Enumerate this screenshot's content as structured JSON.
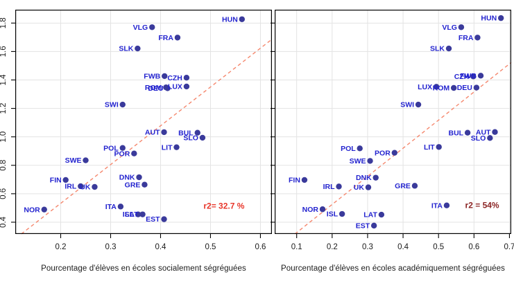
{
  "figure": {
    "background": "#ffffff",
    "point_color": "#3a3a9b",
    "label_color": "#2323cf",
    "grid_color": "#e3e3e3",
    "axis_color": "#000000",
    "tick_label_color": "#1a1a1a",
    "trend_color": "#f5876d"
  },
  "chart_data": [
    {
      "type": "scatter",
      "xlabel": "Pourcentage d'élèves en écoles socialement ségréguées",
      "ylabel": "",
      "x_ticks": [
        "0.2",
        "0.3",
        "0.4",
        "0.5",
        "0.6"
      ],
      "y_ticks": [
        "0.4",
        "0.6",
        "0.8",
        "1.0",
        "1.2",
        "1.4",
        "1.6",
        "1.8"
      ],
      "show_y_labels": true,
      "grid": true,
      "legend": "none",
      "xlim": [
        0.109,
        0.623
      ],
      "ylim": [
        0.317,
        1.894
      ],
      "r2": {
        "text": "r2= 32.7 %",
        "color": "#e8362a",
        "x": 0.527,
        "y": 0.515
      },
      "trend": {
        "style": "dashed",
        "x1": 0.121,
        "y1": 0.317,
        "x2": 0.623,
        "y2": 1.686
      },
      "points": [
        {
          "label": "HUN",
          "x": 0.563,
          "y": 1.827
        },
        {
          "label": "VLG",
          "x": 0.383,
          "y": 1.771
        },
        {
          "label": "FRA",
          "x": 0.434,
          "y": 1.698
        },
        {
          "label": "SLK",
          "x": 0.354,
          "y": 1.621
        },
        {
          "label": "FWB",
          "x": 0.408,
          "y": 1.427
        },
        {
          "label": "CZH",
          "x": 0.452,
          "y": 1.416
        },
        {
          "label": "ROM",
          "x": 0.411,
          "y": 1.348
        },
        {
          "label": "DEU",
          "x": 0.414,
          "y": 1.342
        },
        {
          "label": "LUX",
          "x": 0.452,
          "y": 1.354
        },
        {
          "label": "SWI",
          "x": 0.324,
          "y": 1.227
        },
        {
          "label": "AUT",
          "x": 0.407,
          "y": 1.033
        },
        {
          "label": "BUL",
          "x": 0.474,
          "y": 1.029
        },
        {
          "label": "SLO",
          "x": 0.484,
          "y": 0.994
        },
        {
          "label": "LIT",
          "x": 0.432,
          "y": 0.927
        },
        {
          "label": "POL",
          "x": 0.324,
          "y": 0.922
        },
        {
          "label": "POR",
          "x": 0.347,
          "y": 0.883
        },
        {
          "label": "SWE",
          "x": 0.25,
          "y": 0.835
        },
        {
          "label": "DNK",
          "x": 0.357,
          "y": 0.716
        },
        {
          "label": "FIN",
          "x": 0.21,
          "y": 0.697
        },
        {
          "label": "GRE",
          "x": 0.368,
          "y": 0.664
        },
        {
          "label": "IRL",
          "x": 0.24,
          "y": 0.653
        },
        {
          "label": "UK",
          "x": 0.268,
          "y": 0.648
        },
        {
          "label": "ITA",
          "x": 0.32,
          "y": 0.51
        },
        {
          "label": "NOR",
          "x": 0.167,
          "y": 0.489
        },
        {
          "label": "ISL",
          "x": 0.355,
          "y": 0.455
        },
        {
          "label": "LAT",
          "x": 0.364,
          "y": 0.455
        },
        {
          "label": "EST",
          "x": 0.407,
          "y": 0.421
        }
      ]
    },
    {
      "type": "scatter",
      "xlabel": "Pourcentage d'élèves en écoles académiquement ségréguées",
      "ylabel": "",
      "x_ticks": [
        "0.1",
        "0.2",
        "0.3",
        "0.4",
        "0.5",
        "0.6",
        "0.7"
      ],
      "y_ticks": [
        "0.4",
        "0.6",
        "0.8",
        "1.0",
        "1.2",
        "1.4",
        "1.6",
        "1.8"
      ],
      "show_y_labels": false,
      "grid": true,
      "legend": "none",
      "xlim": [
        0.038,
        0.705
      ],
      "ylim": [
        0.317,
        1.894
      ],
      "r2": {
        "text": "r2 = 54%",
        "color": "#8b2525",
        "x": 0.623,
        "y": 0.518
      },
      "trend": {
        "style": "dashed",
        "x1": 0.095,
        "y1": 0.317,
        "x2": 0.705,
        "y2": 1.523
      },
      "points": [
        {
          "label": "HUN",
          "x": 0.676,
          "y": 1.835
        },
        {
          "label": "VLG",
          "x": 0.564,
          "y": 1.771
        },
        {
          "label": "FRA",
          "x": 0.61,
          "y": 1.698
        },
        {
          "label": "SLK",
          "x": 0.529,
          "y": 1.621
        },
        {
          "label": "CZH",
          "x": 0.598,
          "y": 1.425
        },
        {
          "label": "FWB",
          "x": 0.619,
          "y": 1.43
        },
        {
          "label": "LUX",
          "x": 0.494,
          "y": 1.352
        },
        {
          "label": "ROM",
          "x": 0.543,
          "y": 1.344
        },
        {
          "label": "DEU",
          "x": 0.607,
          "y": 1.346
        },
        {
          "label": "SWI",
          "x": 0.443,
          "y": 1.227
        },
        {
          "label": "BUL",
          "x": 0.582,
          "y": 1.029
        },
        {
          "label": "AUT",
          "x": 0.659,
          "y": 1.034
        },
        {
          "label": "SLO",
          "x": 0.645,
          "y": 0.992
        },
        {
          "label": "LIT",
          "x": 0.501,
          "y": 0.929
        },
        {
          "label": "POL",
          "x": 0.278,
          "y": 0.919
        },
        {
          "label": "POR",
          "x": 0.376,
          "y": 0.888
        },
        {
          "label": "SWE",
          "x": 0.307,
          "y": 0.831
        },
        {
          "label": "DNK",
          "x": 0.323,
          "y": 0.713
        },
        {
          "label": "FIN",
          "x": 0.122,
          "y": 0.697
        },
        {
          "label": "GRE",
          "x": 0.433,
          "y": 0.656
        },
        {
          "label": "IRL",
          "x": 0.219,
          "y": 0.651
        },
        {
          "label": "UK",
          "x": 0.302,
          "y": 0.645
        },
        {
          "label": "ITA",
          "x": 0.523,
          "y": 0.518
        },
        {
          "label": "NOR",
          "x": 0.173,
          "y": 0.491
        },
        {
          "label": "ISL",
          "x": 0.228,
          "y": 0.458
        },
        {
          "label": "LAT",
          "x": 0.339,
          "y": 0.453
        },
        {
          "label": "EST",
          "x": 0.318,
          "y": 0.376
        }
      ]
    }
  ]
}
